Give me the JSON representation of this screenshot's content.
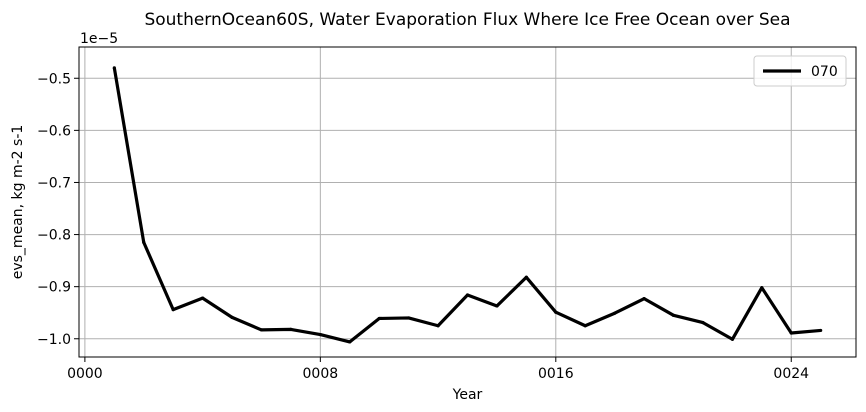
{
  "chart_data": {
    "type": "line",
    "title": "SouthernOcean60S, Water Evaporation Flux Where Ice Free Ocean over Sea",
    "xlabel": "Year",
    "ylabel": "evs_mean, kg m-2 s-1",
    "y_offset_label": "1e−5",
    "xlim": [
      -0.2,
      26.2
    ],
    "ylim": [
      -1.035,
      -0.44
    ],
    "xticks": [
      0,
      8,
      16,
      24
    ],
    "xtick_labels": [
      "0000",
      "0008",
      "0016",
      "0024"
    ],
    "yticks": [
      -1.0,
      -0.9,
      -0.8,
      -0.7,
      -0.6,
      -0.5
    ],
    "ytick_labels": [
      "−1.0",
      "−0.9",
      "−0.8",
      "−0.7",
      "−0.6",
      "−0.5"
    ],
    "grid": true,
    "legend_position": "top-right",
    "series": [
      {
        "name": "070",
        "color": "#000000",
        "x": [
          1,
          2,
          3,
          4,
          5,
          6,
          7,
          8,
          9,
          10,
          11,
          12,
          13,
          14,
          15,
          16,
          17,
          18,
          19,
          20,
          21,
          22,
          23,
          24,
          25
        ],
        "values": [
          -0.48,
          -0.815,
          -0.944,
          -0.922,
          -0.959,
          -0.983,
          -0.982,
          -0.992,
          -1.006,
          -0.961,
          -0.96,
          -0.975,
          -0.916,
          -0.937,
          -0.882,
          -0.949,
          -0.975,
          -0.951,
          -0.923,
          -0.955,
          -0.969,
          -1.001,
          -0.902,
          -0.989,
          -0.984
        ]
      }
    ]
  }
}
